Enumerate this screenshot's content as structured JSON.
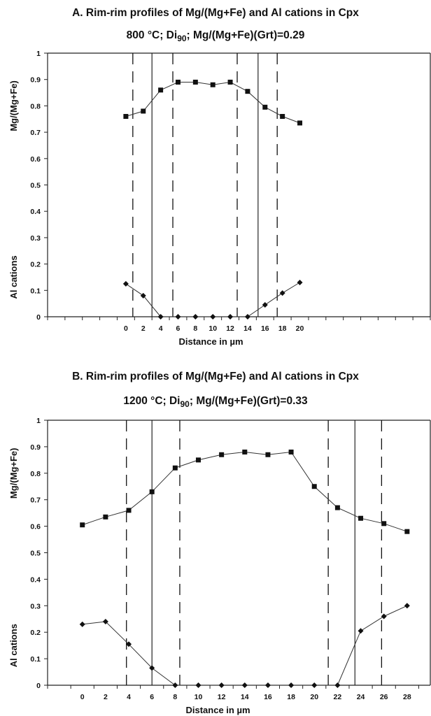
{
  "chart_data": [
    {
      "type": "line",
      "title": "A. Rim-rim profiles of Mg/(Mg+Fe) and Al cations in Cpx",
      "subtitle": {
        "pre": "800 °C; Di",
        "sub": "90",
        "post": "; Mg/(Mg+Fe)(Grt)=0.29"
      },
      "xlabel": "Distance in µm",
      "ylabel_top": "Mg/(Mg+Fe)",
      "ylabel_bottom": "Al cations",
      "ylim": [
        0,
        1
      ],
      "y_ticks": [
        "0",
        "0.1",
        "0.2",
        "0.3",
        "0.4",
        "0.5",
        "0.6",
        "0.7",
        "0.8",
        "0.9",
        "1"
      ],
      "x_ticks": [
        "0",
        "2",
        "4",
        "6",
        "8",
        "10",
        "12",
        "14",
        "16",
        "18",
        "20"
      ],
      "x_range": [
        -9,
        35
      ],
      "grid": false,
      "series": [
        {
          "marker": "square",
          "x": [
            0,
            2,
            4,
            6,
            8,
            10,
            12,
            14,
            16,
            18,
            20
          ],
          "y": [
            0.76,
            0.78,
            0.86,
            0.89,
            0.89,
            0.88,
            0.89,
            0.855,
            0.795,
            0.76,
            0.735
          ]
        },
        {
          "marker": "diamond",
          "x": [
            0,
            2,
            4,
            6,
            8,
            10,
            12,
            14,
            16,
            18,
            20
          ],
          "y": [
            0.125,
            0.08,
            0,
            0,
            0,
            0,
            0,
            0,
            0.045,
            0.09,
            0.13
          ]
        }
      ],
      "vlines_dashed": [
        0.8,
        5.4,
        12.8,
        17.4
      ],
      "vlines_solid": [
        3.0,
        15.2
      ]
    },
    {
      "type": "line",
      "title": "B. Rim-rim profiles of Mg/(Mg+Fe) and Al cations in Cpx",
      "subtitle": {
        "pre": "1200 °C; Di",
        "sub": "90",
        "post": "; Mg/(Mg+Fe)(Grt)=0.33"
      },
      "xlabel": "Distance in µm",
      "ylabel_top": "Mg/(Mg+Fe)",
      "ylabel_bottom": "Al cations",
      "ylim": [
        0,
        1
      ],
      "y_ticks": [
        "0",
        "0.1",
        "0.2",
        "0.3",
        "0.4",
        "0.5",
        "0.6",
        "0.7",
        "0.8",
        "0.9",
        "1"
      ],
      "x_ticks": [
        "0",
        "2",
        "4",
        "6",
        "8",
        "10",
        "12",
        "14",
        "16",
        "18",
        "20",
        "22",
        "24",
        "26",
        "28"
      ],
      "x_range": [
        -3,
        30
      ],
      "grid": false,
      "series": [
        {
          "marker": "square",
          "x": [
            0,
            2,
            4,
            6,
            8,
            10,
            12,
            14,
            16,
            18,
            20,
            22,
            24,
            26,
            28
          ],
          "y": [
            0.605,
            0.635,
            0.66,
            0.73,
            0.82,
            0.85,
            0.87,
            0.88,
            0.87,
            0.88,
            0.75,
            0.67,
            0.63,
            0.61,
            0.58
          ]
        },
        {
          "marker": "diamond",
          "x": [
            0,
            2,
            4,
            6,
            8,
            10,
            12,
            14,
            16,
            18,
            20,
            22,
            24,
            26,
            28
          ],
          "y": [
            0.23,
            0.24,
            0.155,
            0.065,
            0,
            0,
            0,
            0,
            0,
            0,
            0,
            0,
            0.205,
            0.26,
            0.3
          ]
        }
      ],
      "vlines_dashed": [
        3.8,
        8.4,
        21.2,
        25.8
      ],
      "vlines_solid": [
        6.0,
        23.5
      ]
    }
  ]
}
